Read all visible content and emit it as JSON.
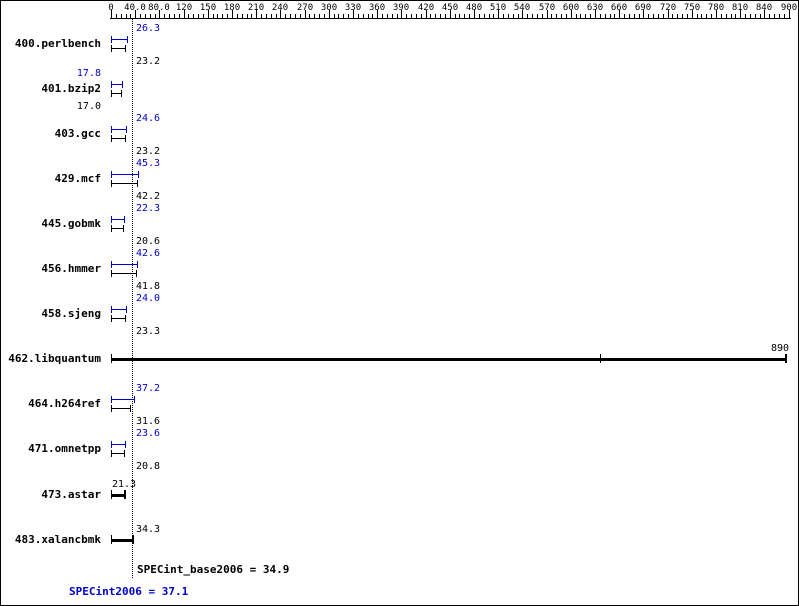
{
  "chart_data": {
    "type": "bar",
    "orientation": "horizontal",
    "grid": false,
    "axis": {
      "position": "top",
      "tick_values": [
        0,
        40,
        80,
        120,
        150,
        180,
        210,
        240,
        270,
        300,
        330,
        360,
        390,
        420,
        450,
        480,
        510,
        540,
        570,
        600,
        630,
        660,
        690,
        720,
        750,
        780,
        810,
        840,
        900
      ],
      "tick_labels": [
        "0",
        "40.0",
        "80.0",
        "120",
        "150",
        "180",
        "210",
        "240",
        "270",
        "300",
        "330",
        "360",
        "390",
        "420",
        "450",
        "480",
        "510",
        "540",
        "570",
        "600",
        "630",
        "660",
        "690",
        "720",
        "750",
        "780",
        "810",
        "840",
        "900"
      ]
    },
    "benchmarks": [
      {
        "name": "400.perlbench",
        "peak": 26.3,
        "base": 23.2,
        "peak_label": "26.3",
        "base_label": "23.2",
        "merged": false,
        "label_placement": "line"
      },
      {
        "name": "401.bzip2",
        "peak": 17.8,
        "base": 17.0,
        "peak_label": "17.8",
        "base_label": "17.0",
        "merged": false,
        "label_placement": "left"
      },
      {
        "name": "403.gcc",
        "peak": 24.6,
        "base": 23.2,
        "peak_label": "24.6",
        "base_label": "23.2",
        "merged": false,
        "label_placement": "line"
      },
      {
        "name": "429.mcf",
        "peak": 45.3,
        "base": 42.2,
        "peak_label": "45.3",
        "base_label": "42.2",
        "merged": false,
        "label_placement": "line"
      },
      {
        "name": "445.gobmk",
        "peak": 22.3,
        "base": 20.6,
        "peak_label": "22.3",
        "base_label": "20.6",
        "merged": false,
        "label_placement": "line"
      },
      {
        "name": "456.hmmer",
        "peak": 42.6,
        "base": 41.8,
        "peak_label": "42.6",
        "base_label": "41.8",
        "merged": false,
        "label_placement": "line"
      },
      {
        "name": "458.sjeng",
        "peak": 24.0,
        "base": 23.3,
        "peak_label": "24.0",
        "base_label": "23.3",
        "merged": false,
        "label_placement": "line"
      },
      {
        "name": "462.libquantum",
        "peak": 890,
        "base": 890,
        "label": "890",
        "merged": true,
        "label_placement": "end",
        "mid_tick": 636
      },
      {
        "name": "464.h264ref",
        "peak": 37.2,
        "base": 31.6,
        "peak_label": "37.2",
        "base_label": "31.6",
        "merged": false,
        "label_placement": "line"
      },
      {
        "name": "471.omnetpp",
        "peak": 23.6,
        "base": 20.8,
        "peak_label": "23.6",
        "base_label": "20.8",
        "merged": false,
        "label_placement": "line"
      },
      {
        "name": "473.astar",
        "peak": 21.3,
        "base": 21.3,
        "label": "21.3",
        "merged": true,
        "label_placement": "start"
      },
      {
        "name": "483.xalancbmk",
        "peak": 34.3,
        "base": 34.3,
        "label": "34.3",
        "merged": true,
        "label_placement": "line"
      }
    ],
    "summary": {
      "base_text": "SPECint_base2006 = 34.9",
      "base_value": 34.9,
      "peak_text": "SPECint2006 = 37.1",
      "peak_value": 37.1
    },
    "colors": {
      "peak": "#0000cc",
      "base": "#000000",
      "background": "#ffffff"
    }
  }
}
